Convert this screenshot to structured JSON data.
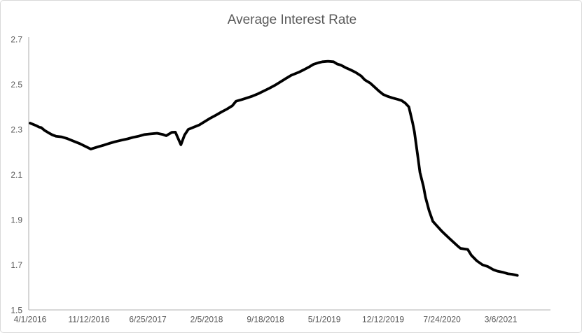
{
  "chart_data": {
    "type": "line",
    "title": "Average Interest Rate",
    "xlabel": "",
    "ylabel": "",
    "grid": false,
    "legend": "none",
    "ylim": [
      1.5,
      2.7
    ],
    "y_ticks": [
      2.7,
      2.5,
      2.3,
      2.1,
      1.9,
      1.7,
      1.5
    ],
    "x_unit": "weeks since first tick",
    "xlim": [
      0,
      283
    ],
    "x_ticks": [
      {
        "week": 0,
        "label": "4/1/2016"
      },
      {
        "week": 32,
        "label": "11/12/2016"
      },
      {
        "week": 64,
        "label": "6/25/2017"
      },
      {
        "week": 96,
        "label": "2/5/2018"
      },
      {
        "week": 128,
        "label": "9/18/2018"
      },
      {
        "week": 160,
        "label": "5/1/2019"
      },
      {
        "week": 192,
        "label": "12/12/2019"
      },
      {
        "week": 224,
        "label": "7/24/2020"
      },
      {
        "week": 256,
        "label": "3/6/2021"
      }
    ],
    "colors": {
      "line": "#000000",
      "axis": "#BFBFBF",
      "text": "#595959",
      "border": "#D9D9D9",
      "background": "#FFFFFF"
    },
    "series": [
      {
        "name": "Average Interest Rate",
        "color": "#000000",
        "stroke_width": 3.8,
        "points": [
          [
            0,
            2.328
          ],
          [
            3,
            2.318
          ],
          [
            5,
            2.31
          ],
          [
            6,
            2.308
          ],
          [
            8,
            2.295
          ],
          [
            10,
            2.285
          ],
          [
            12,
            2.276
          ],
          [
            14,
            2.27
          ],
          [
            17,
            2.267
          ],
          [
            20,
            2.26
          ],
          [
            23,
            2.25
          ],
          [
            27,
            2.237
          ],
          [
            30,
            2.225
          ],
          [
            33,
            2.213
          ],
          [
            35,
            2.218
          ],
          [
            37,
            2.223
          ],
          [
            40,
            2.23
          ],
          [
            43,
            2.238
          ],
          [
            46,
            2.245
          ],
          [
            50,
            2.253
          ],
          [
            53,
            2.258
          ],
          [
            56,
            2.265
          ],
          [
            59,
            2.27
          ],
          [
            62,
            2.277
          ],
          [
            65,
            2.28
          ],
          [
            69,
            2.283
          ],
          [
            72,
            2.278
          ],
          [
            74,
            2.272
          ],
          [
            77,
            2.287
          ],
          [
            79,
            2.288
          ],
          [
            82,
            2.232
          ],
          [
            84,
            2.275
          ],
          [
            86,
            2.3
          ],
          [
            89,
            2.31
          ],
          [
            92,
            2.32
          ],
          [
            95,
            2.335
          ],
          [
            98,
            2.35
          ],
          [
            101,
            2.363
          ],
          [
            104,
            2.377
          ],
          [
            107,
            2.39
          ],
          [
            110,
            2.405
          ],
          [
            112,
            2.425
          ],
          [
            115,
            2.432
          ],
          [
            118,
            2.44
          ],
          [
            121,
            2.448
          ],
          [
            124,
            2.458
          ],
          [
            127,
            2.47
          ],
          [
            130,
            2.482
          ],
          [
            133,
            2.495
          ],
          [
            136,
            2.51
          ],
          [
            139,
            2.525
          ],
          [
            142,
            2.54
          ],
          [
            146,
            2.553
          ],
          [
            149,
            2.565
          ],
          [
            152,
            2.578
          ],
          [
            154,
            2.588
          ],
          [
            157,
            2.596
          ],
          [
            159,
            2.6
          ],
          [
            162,
            2.602
          ],
          [
            165,
            2.6
          ],
          [
            167,
            2.59
          ],
          [
            169,
            2.585
          ],
          [
            172,
            2.572
          ],
          [
            174,
            2.565
          ],
          [
            177,
            2.553
          ],
          [
            180,
            2.537
          ],
          [
            182,
            2.52
          ],
          [
            185,
            2.505
          ],
          [
            187,
            2.49
          ],
          [
            190,
            2.468
          ],
          [
            192,
            2.455
          ],
          [
            194,
            2.448
          ],
          [
            197,
            2.44
          ],
          [
            200,
            2.433
          ],
          [
            202,
            2.428
          ],
          [
            204,
            2.417
          ],
          [
            206,
            2.4
          ],
          [
            208,
            2.33
          ],
          [
            209,
            2.29
          ],
          [
            211,
            2.17
          ],
          [
            212,
            2.11
          ],
          [
            214,
            2.045
          ],
          [
            215,
            2.0
          ],
          [
            217,
            1.94
          ],
          [
            219,
            1.893
          ],
          [
            221,
            1.875
          ],
          [
            224,
            1.848
          ],
          [
            228,
            1.817
          ],
          [
            232,
            1.787
          ],
          [
            234,
            1.773
          ],
          [
            238,
            1.768
          ],
          [
            240,
            1.742
          ],
          [
            243,
            1.717
          ],
          [
            246,
            1.7
          ],
          [
            249,
            1.692
          ],
          [
            252,
            1.678
          ],
          [
            254,
            1.672
          ],
          [
            257,
            1.667
          ],
          [
            260,
            1.66
          ],
          [
            262,
            1.658
          ],
          [
            265,
            1.653
          ]
        ]
      }
    ]
  }
}
